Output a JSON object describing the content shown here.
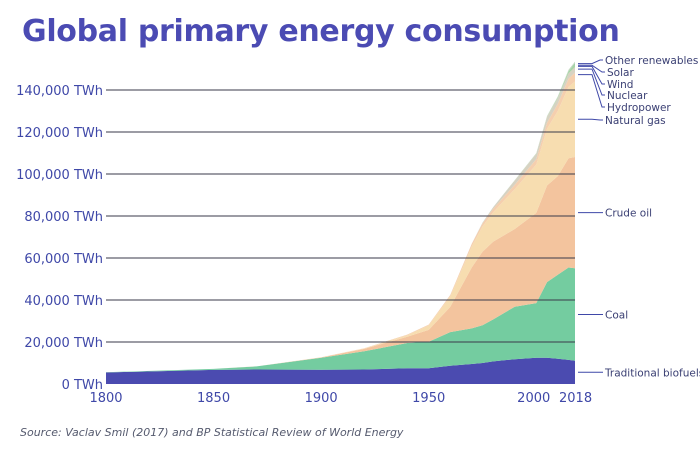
{
  "title": "Global primary energy consumption",
  "source": "Source: Vaclav Smil (2017) and BP Statistical Review of World Energy",
  "colors": {
    "title": "#4b4bb3",
    "axis_text": "#3f48a8",
    "gridline": "#3a3a4a"
  },
  "chart_data": {
    "type": "area",
    "stacked": true,
    "title": "Global primary energy consumption",
    "xlabel": "",
    "ylabel": "",
    "xlim": [
      1800,
      2018
    ],
    "ylim": [
      0,
      150000
    ],
    "x_ticks": [
      1800,
      1850,
      1900,
      1950,
      2000,
      2018
    ],
    "x_tick_labels": [
      "1800",
      "1850",
      "1900",
      "1950",
      "2000",
      "2018"
    ],
    "y_ticks": [
      0,
      20000,
      40000,
      60000,
      80000,
      100000,
      120000,
      140000
    ],
    "y_tick_labels": [
      "0 TWh",
      "20,000 TWh",
      "40,000 TWh",
      "60,000 TWh",
      "80,000 TWh",
      "100,000 TWh",
      "120,000 TWh",
      "140,000 TWh"
    ],
    "grid": true,
    "x": [
      1800,
      1850,
      1870,
      1900,
      1920,
      1940,
      1950,
      1960,
      1970,
      1975,
      1980,
      1990,
      2000,
      2005,
      2010,
      2015,
      2018
    ],
    "series": [
      {
        "name": "Traditional biofuels",
        "color": "#4b4bb0",
        "values": [
          5500,
          6700,
          6900,
          6800,
          6900,
          7500,
          7500,
          8700,
          9500,
          10000,
          10800,
          11800,
          12500,
          12500,
          12000,
          11500,
          11100
        ]
      },
      {
        "name": "Coal",
        "color": "#74cca0",
        "values": [
          100,
          500,
          1500,
          5700,
          8700,
          12000,
          12600,
          16000,
          17000,
          18000,
          20000,
          25000,
          26000,
          36000,
          40000,
          44000,
          44000
        ]
      },
      {
        "name": "Crude oil",
        "color": "#f3c49e",
        "values": [
          0,
          0,
          10,
          200,
          1100,
          3000,
          5700,
          12000,
          29000,
          35000,
          37000,
          37000,
          43000,
          46000,
          47000,
          52000,
          53000
        ]
      },
      {
        "name": "Natural gas",
        "color": "#f7ddb0",
        "values": [
          0,
          0,
          0,
          60,
          230,
          700,
          2100,
          5000,
          10000,
          12000,
          14000,
          19000,
          23000,
          27000,
          31000,
          34000,
          36000
        ]
      },
      {
        "name": "Hydropower",
        "color": "#f5cfae",
        "values": [
          0,
          0,
          0,
          0,
          100,
          300,
          350,
          700,
          1200,
          1400,
          1700,
          2100,
          2600,
          2900,
          3400,
          3900,
          4200
        ]
      },
      {
        "name": "Nuclear",
        "color": "#d7d2c2",
        "values": [
          0,
          0,
          0,
          0,
          0,
          0,
          0,
          10,
          80,
          400,
          700,
          2000,
          2500,
          2700,
          2700,
          2500,
          2600
        ]
      },
      {
        "name": "Wind",
        "color": "#a8d4a5",
        "values": [
          0,
          0,
          0,
          0,
          0,
          0,
          0,
          0,
          0,
          0,
          0,
          4,
          30,
          100,
          340,
          830,
          1270
        ]
      },
      {
        "name": "Solar",
        "color": "#8bc99a",
        "values": [
          0,
          0,
          0,
          0,
          0,
          0,
          0,
          0,
          0,
          0,
          0,
          0,
          1,
          4,
          30,
          250,
          580
        ]
      },
      {
        "name": "Other renewables",
        "color": "#c5d9c0",
        "values": [
          0,
          0,
          0,
          0,
          0,
          0,
          0,
          0,
          10,
          30,
          80,
          200,
          300,
          400,
          500,
          650,
          750
        ]
      }
    ],
    "legend": "right, inline labels"
  }
}
